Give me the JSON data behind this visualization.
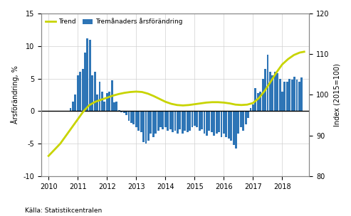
{
  "ylabel_left": "Årsförändring, %",
  "ylabel_right": "Index (2015=100)",
  "source": "Källa: Statistikcentralen",
  "legend_trend": "Trend",
  "legend_bar": "Tremånaders årsförändring",
  "ylim_left": [
    -10,
    15
  ],
  "ylim_right": [
    80,
    120
  ],
  "yticks_left": [
    -10,
    -5,
    0,
    5,
    10,
    15
  ],
  "yticks_right": [
    80,
    90,
    100,
    110,
    120
  ],
  "bar_color": "#2e75b6",
  "trend_color": "#c8d400",
  "zero_line_color": "#000000",
  "background_color": "#ffffff",
  "grid_color": "#d0d0d0",
  "bar_x": [
    2010.75,
    2010.833,
    2010.917,
    2011.0,
    2011.083,
    2011.167,
    2011.25,
    2011.333,
    2011.417,
    2011.5,
    2011.583,
    2011.667,
    2011.75,
    2011.833,
    2011.917,
    2012.0,
    2012.083,
    2012.167,
    2012.25,
    2012.333,
    2012.417,
    2012.5,
    2012.583,
    2012.667,
    2012.75,
    2012.833,
    2012.917,
    2013.0,
    2013.083,
    2013.167,
    2013.25,
    2013.333,
    2013.417,
    2013.5,
    2013.583,
    2013.667,
    2013.75,
    2013.833,
    2013.917,
    2014.0,
    2014.083,
    2014.167,
    2014.25,
    2014.333,
    2014.417,
    2014.5,
    2014.583,
    2014.667,
    2014.75,
    2014.833,
    2014.917,
    2015.0,
    2015.083,
    2015.167,
    2015.25,
    2015.333,
    2015.417,
    2015.5,
    2015.583,
    2015.667,
    2015.75,
    2015.833,
    2015.917,
    2016.0,
    2016.083,
    2016.167,
    2016.25,
    2016.333,
    2016.417,
    2016.5,
    2016.583,
    2016.667,
    2016.75,
    2016.833,
    2016.917,
    2017.0,
    2017.083,
    2017.167,
    2017.25,
    2017.333,
    2017.417,
    2017.5,
    2017.583,
    2017.667,
    2017.75,
    2017.833,
    2017.917,
    2018.0,
    2018.083,
    2018.167,
    2018.25,
    2018.333,
    2018.417,
    2018.5,
    2018.583,
    2018.667
  ],
  "bar_values": [
    0.5,
    1.5,
    2.5,
    5.5,
    6.0,
    6.5,
    9.0,
    11.2,
    11.0,
    5.5,
    6.0,
    2.5,
    4.5,
    3.0,
    1.5,
    2.8,
    3.0,
    4.7,
    1.4,
    1.5,
    0.1,
    -0.2,
    -0.3,
    -0.6,
    -1.5,
    -1.8,
    -2.0,
    -2.5,
    -3.0,
    -3.2,
    -4.8,
    -5.0,
    -4.5,
    -3.5,
    -4.0,
    -3.5,
    -3.0,
    -2.5,
    -2.8,
    -2.5,
    -3.0,
    -2.8,
    -3.2,
    -3.0,
    -3.5,
    -2.8,
    -3.5,
    -3.0,
    -3.2,
    -3.0,
    -2.5,
    -2.2,
    -2.5,
    -3.0,
    -2.8,
    -3.5,
    -3.8,
    -3.0,
    -3.2,
    -3.8,
    -3.5,
    -3.2,
    -4.0,
    -3.5,
    -4.0,
    -4.2,
    -4.5,
    -5.2,
    -5.7,
    -3.5,
    -2.5,
    -3.0,
    -2.0,
    -1.0,
    0.5,
    1.0,
    3.5,
    2.8,
    3.0,
    5.0,
    6.5,
    8.7,
    6.0,
    5.5,
    6.0,
    5.8,
    5.0,
    3.0,
    4.5,
    4.5,
    5.0,
    4.8,
    5.3,
    4.8,
    4.5,
    5.2
  ],
  "trend_x": [
    2010.0,
    2010.2,
    2010.4,
    2010.6,
    2010.8,
    2011.0,
    2011.2,
    2011.4,
    2011.6,
    2011.8,
    2012.0,
    2012.2,
    2012.4,
    2012.6,
    2012.8,
    2013.0,
    2013.2,
    2013.4,
    2013.6,
    2013.8,
    2014.0,
    2014.2,
    2014.4,
    2014.6,
    2014.8,
    2015.0,
    2015.2,
    2015.4,
    2015.6,
    2015.8,
    2016.0,
    2016.2,
    2016.4,
    2016.6,
    2016.8,
    2017.0,
    2017.2,
    2017.4,
    2017.6,
    2017.8,
    2018.0,
    2018.2,
    2018.4,
    2018.6,
    2018.75
  ],
  "trend_y": [
    85.0,
    86.5,
    88.0,
    90.0,
    92.0,
    94.0,
    96.0,
    97.5,
    98.3,
    98.8,
    99.3,
    99.8,
    100.2,
    100.5,
    100.7,
    100.8,
    100.7,
    100.3,
    99.7,
    99.0,
    98.3,
    97.8,
    97.5,
    97.4,
    97.5,
    97.7,
    97.9,
    98.1,
    98.2,
    98.2,
    98.1,
    97.9,
    97.6,
    97.5,
    97.6,
    98.0,
    99.2,
    101.0,
    103.2,
    105.5,
    107.5,
    108.8,
    109.8,
    110.4,
    110.6
  ],
  "xticks": [
    2010,
    2011,
    2012,
    2013,
    2014,
    2015,
    2016,
    2017,
    2018
  ],
  "xmin": 2009.75,
  "xmax": 2018.92,
  "bar_width": 0.07
}
